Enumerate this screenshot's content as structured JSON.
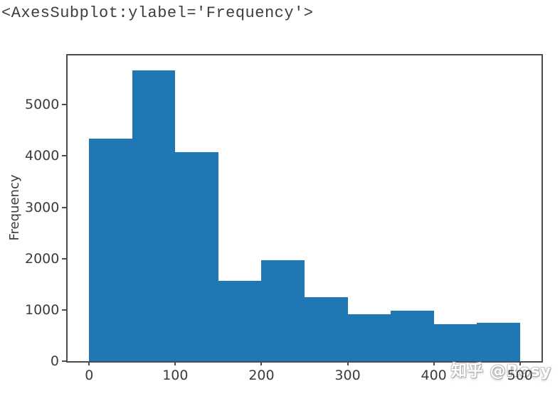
{
  "title": "<AxesSubplot:ylabel='Frequency'>",
  "watermark": {
    "text": "知乎 @Rosy"
  },
  "chart_data": {
    "type": "bar",
    "subtype": "histogram",
    "title": "",
    "xlabel": "",
    "ylabel": "Frequency",
    "bin_edges": [
      0,
      50,
      100,
      150,
      200,
      250,
      300,
      350,
      400,
      450,
      500
    ],
    "values": [
      4340,
      5670,
      4070,
      1560,
      1970,
      1250,
      910,
      990,
      720,
      750
    ],
    "x_ticks": [
      0,
      100,
      200,
      300,
      400,
      500
    ],
    "y_ticks": [
      0,
      1000,
      2000,
      3000,
      4000,
      5000
    ],
    "xlim": [
      -25,
      525
    ],
    "ylim": [
      0,
      5960
    ],
    "bar_color": "#1f77b4",
    "grid": false,
    "legend": null
  }
}
